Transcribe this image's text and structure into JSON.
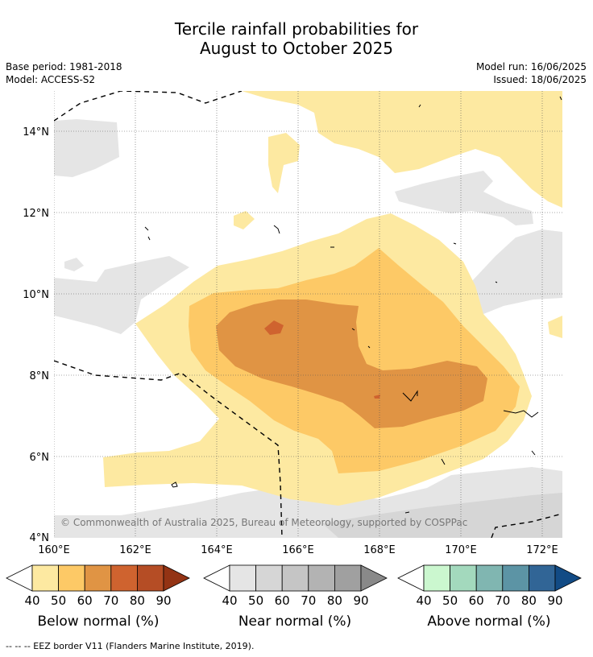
{
  "title_line1": "Tercile rainfall probabilities for",
  "title_line2": "August to October 2025",
  "base_period": "Base period: 1981-2018",
  "model": "Model: ACCESS-S2",
  "model_run": "Model run: 16/06/2025",
  "issued": "Issued: 18/06/2025",
  "copyright": "© Commonwealth of Australia 2025, Bureau of Meteorology, supported by COSPPac",
  "footer": "--  --  -- EEZ border V11 (Flanders Marine Institute, 2019).",
  "lat_labels": [
    "4°N",
    "6°N",
    "8°N",
    "10°N",
    "12°N",
    "14°N"
  ],
  "lon_labels": [
    "160°E",
    "162°E",
    "164°E",
    "166°E",
    "168°E",
    "170°E",
    "172°E"
  ],
  "colorbars": [
    {
      "label": "Below normal (%)",
      "ticks": [
        "40",
        "50",
        "60",
        "70",
        "80",
        "90"
      ],
      "colors": [
        "#fde9a1",
        "#fdc966",
        "#e09444",
        "#cf632f",
        "#b54d25",
        "#933314"
      ]
    },
    {
      "label": "Near normal (%)",
      "ticks": [
        "40",
        "50",
        "60",
        "70",
        "80",
        "90"
      ],
      "colors": [
        "#e5e5e5",
        "#d6d6d6",
        "#c5c5c5",
        "#b3b3b3",
        "#a0a0a0",
        "#898989"
      ]
    },
    {
      "label": "Above normal (%)",
      "ticks": [
        "40",
        "50",
        "60",
        "70",
        "80",
        "90"
      ],
      "colors": [
        "#cbf7cf",
        "#a3d9bd",
        "#80b6b1",
        "#5c94a5",
        "#316596",
        "#124b85"
      ]
    }
  ],
  "colors": {
    "below_40_50": "#fde9a1",
    "below_50_60": "#fdc966",
    "below_60_70": "#e09444",
    "below_70_80": "#cf632f",
    "near_40_50": "#e5e5e5",
    "near_50_60": "#d6d6d6"
  }
}
